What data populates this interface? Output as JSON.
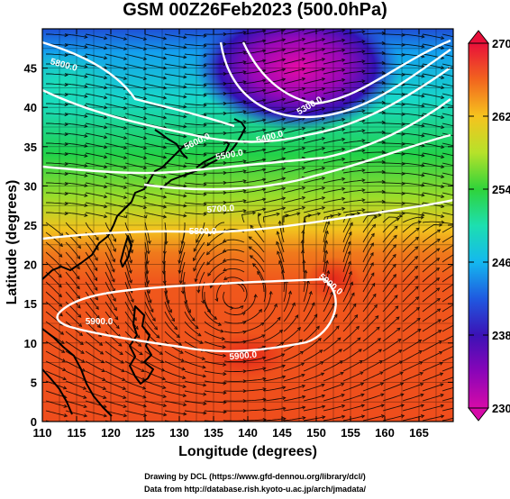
{
  "title": "GSM 00Z26Feb2023 (500.0hPa)",
  "xlabel": "Longitude (degrees)",
  "ylabel": "Latitude (degrees)",
  "credits": [
    "Drawing by DCL (https://www.gfd-dennou.org/library/dcl/)",
    "Data from http://database.rish.kyoto-u.ac.jp/arch/jmadata/"
  ],
  "x_ticks": [
    "110",
    "115",
    "120",
    "125",
    "130",
    "135",
    "140",
    "145",
    "150",
    "155",
    "160",
    "165"
  ],
  "y_ticks": [
    "0",
    "5",
    "10",
    "15",
    "20",
    "25",
    "30",
    "35",
    "40",
    "45"
  ],
  "colorbar": {
    "ticks": [
      "270",
      "262",
      "254",
      "246",
      "238",
      "230"
    ],
    "colors": [
      "#e8103a",
      "#f2651e",
      "#f6c31e",
      "#b6e22a",
      "#2fd33a",
      "#1ddfb0",
      "#14b8ef",
      "#1f59e0",
      "#3b12b6",
      "#8a05b8",
      "#d60aa8"
    ]
  },
  "contour_labels": [
    {
      "text": "5300.0",
      "color": "#ffffff"
    },
    {
      "text": "5400.0",
      "color": "#ffffff"
    },
    {
      "text": "5500.0",
      "color": "#ffffff"
    },
    {
      "text": "5600.0",
      "color": "#ffffff"
    },
    {
      "text": "5700.0",
      "color": "#ffffff"
    },
    {
      "text": "5800.0",
      "color": "#ffffff"
    },
    {
      "text": "5900.0",
      "color": "#ffffff"
    },
    {
      "text": "5900.0",
      "color": "#ffffff"
    },
    {
      "text": "5800.0",
      "color": "#ffffff"
    },
    {
      "text": "5900.0",
      "color": "#ffffff"
    }
  ]
}
